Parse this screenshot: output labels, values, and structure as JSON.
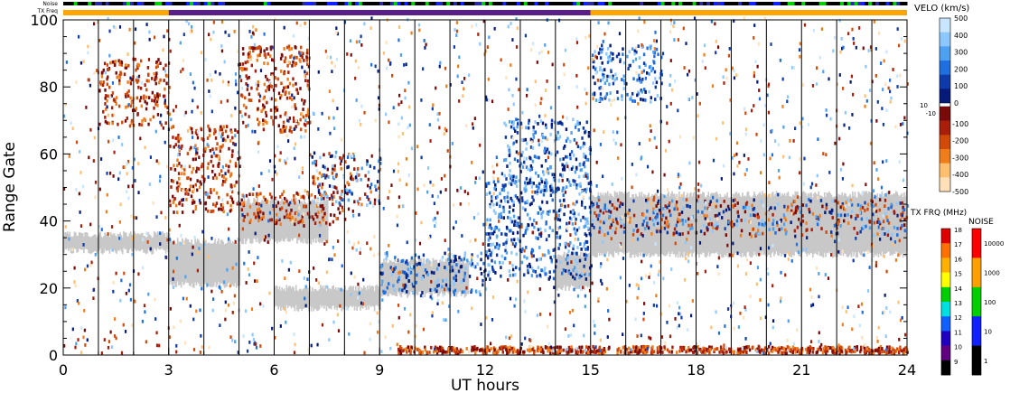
{
  "chart_data": {
    "type": "heatmap",
    "title": "",
    "xlabel": "UT hours",
    "ylabel": "Range Gate",
    "xlim": [
      0,
      24
    ],
    "ylim": [
      0,
      100
    ],
    "x_ticks": [
      "0",
      "3",
      "6",
      "9",
      "12",
      "15",
      "18",
      "21",
      "24"
    ],
    "y_ticks": [
      "0",
      "20",
      "40",
      "60",
      "80",
      "100"
    ],
    "scan_boundaries_hours": [
      1,
      2,
      3,
      4,
      5,
      6,
      7,
      8,
      9,
      10,
      11,
      12,
      13,
      14,
      15,
      16,
      17,
      18,
      19,
      20,
      21,
      22,
      23
    ],
    "top_strip_labels": {
      "noise": "Noise",
      "txfreq": "TX Freq"
    },
    "tx_freq_segments": [
      {
        "start": 0,
        "end": 3,
        "color": "#ffa500"
      },
      {
        "start": 3,
        "end": 15,
        "color": "#5a1f8a"
      },
      {
        "start": 15,
        "end": 24,
        "color": "#ffa500"
      }
    ],
    "velocity_scale": {
      "title": "VELO (km/s)",
      "labels": [
        "500",
        "400",
        "300",
        "200",
        "100",
        "0",
        "-100",
        "-200",
        "-300",
        "-400",
        "-500"
      ],
      "small_labels": [
        "10",
        "-10"
      ],
      "colors": [
        "#c8e6ff",
        "#8cc8ff",
        "#4ea0f0",
        "#1f6fe0",
        "#0f3aaa",
        "#061a7a",
        "#7a0a0a",
        "#a81e0a",
        "#d24a0a",
        "#f07d1a",
        "#ffbf6e",
        "#ffe0b8"
      ],
      "ground_scatter_color": "#c8c8c8"
    },
    "txfreq_scale": {
      "title": "TX FRQ (MHz)",
      "labels": [
        "18",
        "17",
        "16",
        "15",
        "14",
        "13",
        "12",
        "11",
        "10",
        "9"
      ],
      "colors": [
        "#e00000",
        "#ff7000",
        "#ffb000",
        "#ffff00",
        "#00d000",
        "#00e0e0",
        "#1060ff",
        "#2000c0",
        "#600080",
        "#000000"
      ]
    },
    "noise_scale": {
      "title": "NOISE",
      "labels": [
        "10000",
        "1000",
        "100",
        "10",
        "1"
      ],
      "colors": [
        "#ff0000",
        "#ffa000",
        "#00d000",
        "#1020ff",
        "#000000"
      ]
    },
    "series": [
      {
        "category": "ground_scatter",
        "segments": [
          {
            "x0": 0.0,
            "x1": 3.0,
            "y0": 31,
            "y1": 36
          },
          {
            "x0": 3.0,
            "x1": 5.0,
            "y0": 21,
            "y1": 34
          },
          {
            "x0": 5.0,
            "x1": 7.5,
            "y0": 34,
            "y1": 46
          },
          {
            "x0": 6.0,
            "x1": 9.0,
            "y0": 14,
            "y1": 20
          },
          {
            "x0": 9.0,
            "x1": 11.5,
            "y0": 18,
            "y1": 28
          },
          {
            "x0": 14.0,
            "x1": 15.0,
            "y0": 20,
            "y1": 30
          },
          {
            "x0": 15.0,
            "x1": 24.0,
            "y0": 30,
            "y1": 48
          }
        ]
      },
      {
        "category": "ionospheric_echo_streaks",
        "segments": [
          {
            "x0": 1.0,
            "x1": 3.0,
            "y0": 68,
            "y1": 88,
            "tone": "red"
          },
          {
            "x0": 3.0,
            "x1": 5.0,
            "y0": 42,
            "y1": 68,
            "tone": "red"
          },
          {
            "x0": 5.0,
            "x1": 7.0,
            "y0": 66,
            "y1": 92,
            "tone": "red"
          },
          {
            "x0": 5.0,
            "x1": 8.0,
            "y0": 38,
            "y1": 48,
            "tone": "red"
          },
          {
            "x0": 7.0,
            "x1": 9.0,
            "y0": 44,
            "y1": 60,
            "tone": "mixed"
          },
          {
            "x0": 9.0,
            "x1": 12.0,
            "y0": 18,
            "y1": 30,
            "tone": "blue"
          },
          {
            "x0": 12.0,
            "x1": 15.0,
            "y0": 22,
            "y1": 52,
            "tone": "blue"
          },
          {
            "x0": 12.5,
            "x1": 15.0,
            "y0": 48,
            "y1": 70,
            "tone": "blue"
          },
          {
            "x0": 15.0,
            "x1": 24.0,
            "y0": 35,
            "y1": 46,
            "tone": "mixed"
          },
          {
            "x0": 15.0,
            "x1": 17.0,
            "y0": 75,
            "y1": 92,
            "tone": "blue"
          },
          {
            "x0": 9.5,
            "x1": 24.0,
            "y0": 0,
            "y1": 2,
            "tone": "red"
          }
        ]
      }
    ],
    "grid": false,
    "legend": "right"
  }
}
